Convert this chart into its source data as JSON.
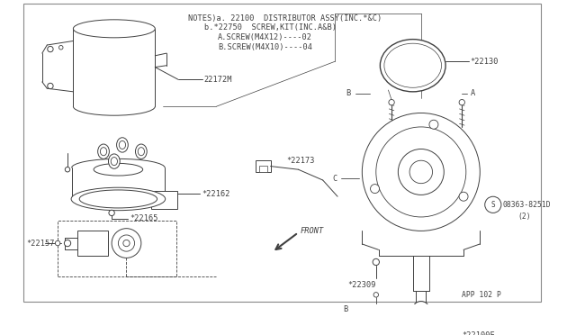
{
  "bg_color": "#ffffff",
  "line_color": "#404040",
  "notes_line1": "NOTES)a. 22100  DISTRIBUTOR ASSY(INC.*&C)",
  "notes_line2": "b.*22750  SCREW,KIT(INC.A&B)",
  "notes_line3": "A.SCREW(M4X12)----02",
  "notes_line4": "B.SCREW(M4X10)----04",
  "page_ref": "APP 102 P"
}
